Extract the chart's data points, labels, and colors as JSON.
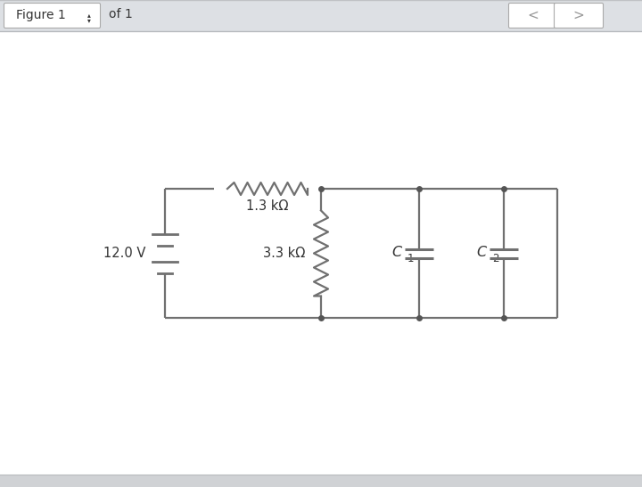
{
  "bg_outer": "#e8eaed",
  "bg_header": "#e0e2e5",
  "bg_main": "#ffffff",
  "bg_bottom": "#d0d2d5",
  "line_color": "#666666",
  "line_width": 1.6,
  "dot_color": "#555555",
  "dot_size": 5,
  "header_text": "Figure 1",
  "header_of": "of 1",
  "battery_label": "12.0 V",
  "r1_label": "1.3 kΩ",
  "r2_label": "3.3 kΩ",
  "c1_label": "C",
  "c1_sub": "1",
  "c2_label": "C",
  "c2_sub": "2",
  "font_size": 10.5,
  "header_font_size": 10,
  "wire_color": "#707070"
}
